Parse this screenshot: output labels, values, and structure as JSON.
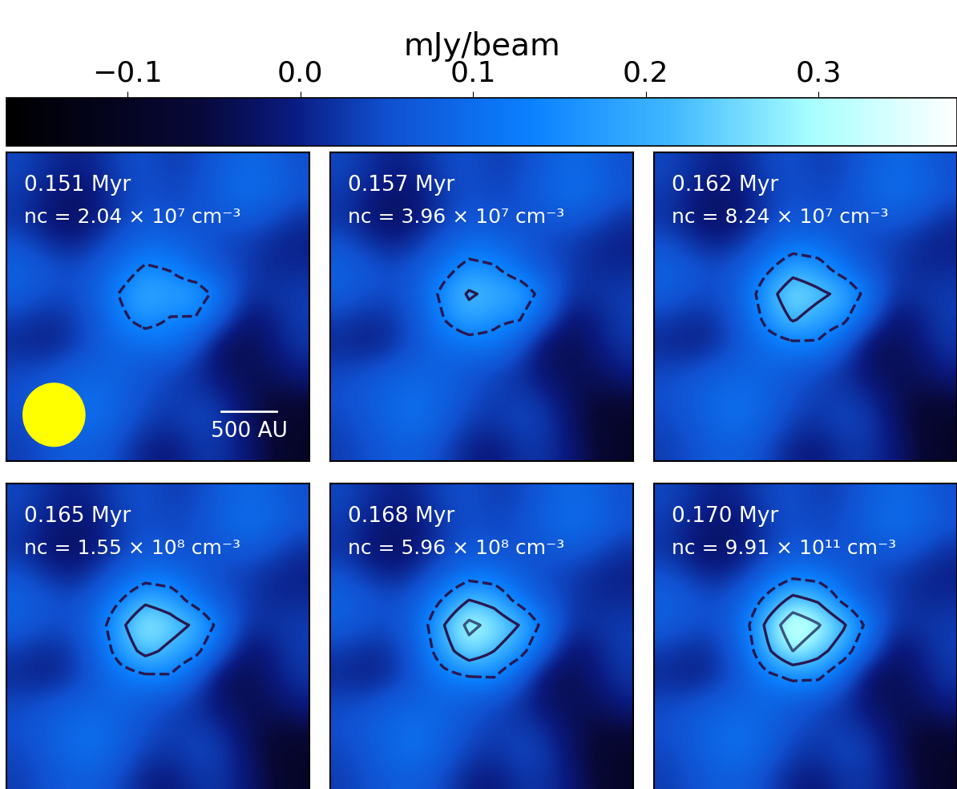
{
  "chart_data": {
    "type": "heatmap",
    "xlim": [
      -1370,
      1370
    ],
    "ylim": [
      -1370,
      1370
    ],
    "tick_labels": false,
    "colorbar": {
      "label": "mJy/beam",
      "range": [
        -0.17,
        0.38
      ],
      "ticks": [
        {
          "value": -0.1,
          "label": "−0.1"
        },
        0.0,
        0.1,
        0.2,
        0.3
      ]
    },
    "contour_levels": [
      0.14,
      0.22,
      0.3
    ],
    "panels": [
      {
        "time": "0.151 Myr",
        "density": "nc = 2.04 × 10⁷ cm⁻³",
        "scale_bar": {
          "length": 500,
          "label": "500 AU"
        },
        "beam_diameter": 560,
        "cells": [
          [
            0.04,
            0.02,
            0.0,
            0.01,
            0.04,
            0.05,
            0.03,
            0.04,
            0.07,
            0.09,
            0.08,
            0.05
          ],
          [
            0.03,
            0.0,
            -0.02,
            -0.01,
            0.03,
            0.05,
            0.04,
            0.05,
            0.08,
            0.1,
            0.09,
            0.06
          ],
          [
            0.02,
            -0.01,
            -0.03,
            -0.01,
            0.03,
            0.06,
            0.05,
            0.05,
            0.06,
            0.07,
            0.05,
            0.02
          ],
          [
            0.05,
            0.02,
            0.0,
            0.024,
            0.063,
            0.09,
            0.086,
            0.066,
            0.041,
            0.03,
            0.01,
            0.0
          ],
          [
            0.08,
            0.06,
            0.043,
            0.063,
            0.103,
            0.149,
            0.135,
            0.093,
            0.055,
            0.03,
            0.01,
            0.01
          ],
          [
            0.07,
            0.05,
            0.044,
            0.073,
            0.144,
            0.2,
            0.178,
            0.179,
            0.108,
            0.02,
            0.02,
            0.03
          ],
          [
            0.03,
            0.01,
            0.023,
            0.06,
            0.124,
            0.164,
            0.135,
            0.134,
            0.058,
            -0.02,
            0.0,
            0.03
          ],
          [
            0.01,
            0.0,
            0.02,
            0.059,
            0.088,
            0.095,
            0.106,
            0.055,
            -0.028,
            -0.04,
            -0.01,
            0.02
          ],
          [
            0.04,
            0.05,
            0.07,
            0.08,
            0.076,
            0.06,
            0.038,
            0.014,
            -0.02,
            -0.04,
            -0.03,
            0.0
          ],
          [
            0.05,
            0.07,
            0.09,
            0.1,
            0.08,
            0.05,
            0.03,
            0.03,
            0.01,
            -0.03,
            -0.06,
            -0.05
          ],
          [
            0.04,
            0.06,
            0.09,
            0.1,
            0.07,
            0.03,
            0.02,
            0.04,
            0.03,
            -0.02,
            -0.07,
            -0.09
          ],
          [
            0.03,
            0.05,
            0.07,
            0.07,
            0.04,
            0.0,
            -0.01,
            0.02,
            0.02,
            -0.01,
            -0.06,
            -0.09
          ]
        ]
      },
      {
        "time": "0.157 Myr",
        "density": "nc = 3.96 × 10⁷ cm⁻³",
        "cells": [
          [
            0.04,
            0.02,
            0.0,
            0.01,
            0.04,
            0.05,
            0.03,
            0.04,
            0.07,
            0.09,
            0.08,
            0.05
          ],
          [
            0.03,
            0.0,
            -0.02,
            -0.01,
            0.03,
            0.05,
            0.04,
            0.05,
            0.08,
            0.1,
            0.09,
            0.06
          ],
          [
            0.02,
            -0.01,
            -0.03,
            -0.01,
            0.03,
            0.06,
            0.05,
            0.05,
            0.06,
            0.07,
            0.05,
            0.02
          ],
          [
            0.05,
            0.02,
            0.0,
            0.025,
            0.066,
            0.095,
            0.09,
            0.068,
            0.042,
            0.03,
            0.01,
            0.0
          ],
          [
            0.08,
            0.06,
            0.043,
            0.066,
            0.113,
            0.165,
            0.148,
            0.098,
            0.056,
            0.03,
            0.01,
            0.01
          ],
          [
            0.07,
            0.05,
            0.045,
            0.078,
            0.161,
            0.229,
            0.201,
            0.188,
            0.109,
            0.02,
            0.02,
            0.03
          ],
          [
            0.03,
            0.01,
            0.023,
            0.065,
            0.139,
            0.189,
            0.155,
            0.142,
            0.059,
            -0.02,
            0.0,
            0.03
          ],
          [
            0.01,
            0.0,
            0.02,
            0.061,
            0.094,
            0.106,
            0.115,
            0.059,
            -0.027,
            -0.04,
            -0.01,
            0.02
          ],
          [
            0.04,
            0.05,
            0.07,
            0.08,
            0.078,
            0.062,
            0.039,
            0.015,
            -0.02,
            -0.04,
            -0.03,
            0.0
          ],
          [
            0.05,
            0.07,
            0.09,
            0.1,
            0.08,
            0.05,
            0.03,
            0.03,
            0.01,
            -0.03,
            -0.06,
            -0.05
          ],
          [
            0.04,
            0.06,
            0.09,
            0.1,
            0.07,
            0.03,
            0.02,
            0.04,
            0.03,
            -0.02,
            -0.07,
            -0.09
          ],
          [
            0.03,
            0.05,
            0.07,
            0.07,
            0.04,
            0.0,
            -0.01,
            0.02,
            0.02,
            -0.01,
            -0.06,
            -0.09
          ]
        ]
      },
      {
        "time": "0.162 Myr",
        "density": "nc = 8.24 × 10⁷ cm⁻³",
        "cells": [
          [
            0.04,
            0.02,
            0.0,
            0.01,
            0.04,
            0.05,
            0.03,
            0.04,
            0.07,
            0.09,
            0.08,
            0.05
          ],
          [
            0.03,
            0.0,
            -0.02,
            -0.01,
            0.03,
            0.05,
            0.04,
            0.05,
            0.08,
            0.1,
            0.09,
            0.06
          ],
          [
            0.02,
            -0.01,
            -0.03,
            -0.01,
            0.03,
            0.06,
            0.05,
            0.05,
            0.06,
            0.07,
            0.05,
            0.02
          ],
          [
            0.05,
            0.02,
            0.0,
            0.026,
            0.07,
            0.102,
            0.096,
            0.07,
            0.042,
            0.03,
            0.01,
            0.0
          ],
          [
            0.08,
            0.06,
            0.044,
            0.07,
            0.128,
            0.19,
            0.168,
            0.106,
            0.058,
            0.03,
            0.01,
            0.01
          ],
          [
            0.07,
            0.05,
            0.046,
            0.086,
            0.188,
            0.272,
            0.236,
            0.202,
            0.112,
            0.02,
            0.02,
            0.03
          ],
          [
            0.03,
            0.01,
            0.024,
            0.072,
            0.162,
            0.226,
            0.186,
            0.154,
            0.062,
            -0.02,
            0.0,
            0.03
          ],
          [
            0.01,
            0.0,
            0.02,
            0.064,
            0.104,
            0.122,
            0.128,
            0.064,
            -0.026,
            -0.04,
            -0.01,
            0.02
          ],
          [
            0.04,
            0.05,
            0.07,
            0.08,
            0.08,
            0.066,
            0.042,
            0.016,
            -0.02,
            -0.04,
            -0.03,
            0.0
          ],
          [
            0.05,
            0.07,
            0.09,
            0.1,
            0.08,
            0.05,
            0.03,
            0.03,
            0.01,
            -0.03,
            -0.06,
            -0.05
          ],
          [
            0.04,
            0.06,
            0.09,
            0.1,
            0.07,
            0.03,
            0.02,
            0.04,
            0.03,
            -0.02,
            -0.07,
            -0.09
          ],
          [
            0.03,
            0.05,
            0.07,
            0.07,
            0.04,
            0.0,
            -0.01,
            0.02,
            0.02,
            -0.01,
            -0.06,
            -0.09
          ]
        ]
      },
      {
        "time": "0.165 Myr",
        "density": "nc = 1.55 × 10⁸ cm⁻³",
        "cells": [
          [
            0.04,
            0.02,
            0.0,
            0.01,
            0.04,
            0.05,
            0.03,
            0.04,
            0.07,
            0.09,
            0.08,
            0.05
          ],
          [
            0.03,
            0.0,
            -0.02,
            -0.01,
            0.03,
            0.05,
            0.04,
            0.05,
            0.08,
            0.1,
            0.09,
            0.06
          ],
          [
            0.02,
            -0.01,
            -0.03,
            -0.01,
            0.03,
            0.06,
            0.05,
            0.05,
            0.06,
            0.07,
            0.05,
            0.02
          ],
          [
            0.05,
            0.02,
            0.0,
            0.027,
            0.072,
            0.105,
            0.099,
            0.071,
            0.042,
            0.03,
            0.01,
            0.0
          ],
          [
            0.08,
            0.06,
            0.044,
            0.072,
            0.135,
            0.201,
            0.177,
            0.11,
            0.059,
            0.03,
            0.01,
            0.01
          ],
          [
            0.07,
            0.05,
            0.047,
            0.09,
            0.2,
            0.291,
            0.252,
            0.208,
            0.113,
            0.02,
            0.02,
            0.03
          ],
          [
            0.03,
            0.01,
            0.024,
            0.075,
            0.172,
            0.243,
            0.2,
            0.159,
            0.063,
            -0.02,
            0.0,
            0.03
          ],
          [
            0.01,
            0.0,
            0.02,
            0.065,
            0.108,
            0.129,
            0.134,
            0.066,
            -0.026,
            -0.04,
            -0.01,
            0.02
          ],
          [
            0.04,
            0.05,
            0.07,
            0.08,
            0.081,
            0.068,
            0.043,
            0.017,
            -0.02,
            -0.04,
            -0.03,
            0.0
          ],
          [
            0.05,
            0.07,
            0.09,
            0.1,
            0.08,
            0.05,
            0.03,
            0.03,
            0.01,
            -0.03,
            -0.06,
            -0.05
          ],
          [
            0.04,
            0.06,
            0.09,
            0.1,
            0.07,
            0.03,
            0.02,
            0.04,
            0.03,
            -0.02,
            -0.07,
            -0.09
          ],
          [
            0.03,
            0.05,
            0.07,
            0.07,
            0.04,
            0.0,
            -0.01,
            0.02,
            0.02,
            -0.01,
            -0.06,
            -0.09
          ]
        ]
      },
      {
        "time": "0.168 Myr",
        "density": "nc = 5.96 × 10⁸ cm⁻³",
        "cells": [
          [
            0.04,
            0.02,
            0.0,
            0.01,
            0.04,
            0.05,
            0.03,
            0.04,
            0.07,
            0.09,
            0.08,
            0.05
          ],
          [
            0.03,
            0.0,
            -0.02,
            -0.01,
            0.03,
            0.05,
            0.04,
            0.05,
            0.08,
            0.1,
            0.09,
            0.06
          ],
          [
            0.02,
            -0.01,
            -0.03,
            -0.01,
            0.03,
            0.06,
            0.05,
            0.05,
            0.06,
            0.07,
            0.05,
            0.02
          ],
          [
            0.05,
            0.02,
            0.0,
            0.028,
            0.075,
            0.11,
            0.103,
            0.073,
            0.043,
            0.03,
            0.01,
            0.0
          ],
          [
            0.08,
            0.06,
            0.045,
            0.075,
            0.145,
            0.218,
            0.19,
            0.115,
            0.06,
            0.03,
            0.01,
            0.01
          ],
          [
            0.07,
            0.05,
            0.048,
            0.095,
            0.218,
            0.32,
            0.275,
            0.218,
            0.115,
            0.02,
            0.02,
            0.03
          ],
          [
            0.03,
            0.01,
            0.025,
            0.08,
            0.188,
            0.268,
            0.22,
            0.168,
            0.065,
            -0.02,
            0.0,
            0.03
          ],
          [
            0.01,
            0.0,
            0.02,
            0.068,
            0.115,
            0.14,
            0.143,
            0.07,
            -0.025,
            -0.04,
            -0.01,
            0.02
          ],
          [
            0.04,
            0.05,
            0.07,
            0.08,
            0.083,
            0.07,
            0.045,
            0.018,
            -0.02,
            -0.04,
            -0.03,
            0.0
          ],
          [
            0.05,
            0.07,
            0.09,
            0.1,
            0.08,
            0.05,
            0.03,
            0.03,
            0.01,
            -0.03,
            -0.06,
            -0.05
          ],
          [
            0.04,
            0.06,
            0.09,
            0.1,
            0.07,
            0.03,
            0.02,
            0.04,
            0.03,
            -0.02,
            -0.07,
            -0.09
          ],
          [
            0.03,
            0.05,
            0.07,
            0.07,
            0.04,
            0.0,
            -0.01,
            0.02,
            0.02,
            -0.01,
            -0.06,
            -0.09
          ]
        ]
      },
      {
        "time": "0.170 Myr",
        "density": "nc = 9.91 × 10¹¹ cm⁻³",
        "cells": [
          [
            0.04,
            0.02,
            0.0,
            0.01,
            0.04,
            0.05,
            0.03,
            0.04,
            0.07,
            0.09,
            0.08,
            0.05
          ],
          [
            0.03,
            0.0,
            -0.02,
            -0.01,
            0.03,
            0.05,
            0.04,
            0.05,
            0.08,
            0.1,
            0.09,
            0.06
          ],
          [
            0.02,
            -0.01,
            -0.03,
            -0.01,
            0.03,
            0.06,
            0.05,
            0.05,
            0.06,
            0.07,
            0.05,
            0.02
          ],
          [
            0.05,
            0.02,
            0.0,
            0.029,
            0.079,
            0.116,
            0.108,
            0.075,
            0.043,
            0.03,
            0.01,
            0.0
          ],
          [
            0.08,
            0.06,
            0.046,
            0.079,
            0.159,
            0.24,
            0.208,
            0.122,
            0.062,
            0.03,
            0.01,
            0.01
          ],
          [
            0.07,
            0.05,
            0.049,
            0.102,
            0.241,
            0.358,
            0.306,
            0.23,
            0.117,
            0.02,
            0.02,
            0.03
          ],
          [
            0.03,
            0.01,
            0.026,
            0.086,
            0.208,
            0.301,
            0.247,
            0.178,
            0.067,
            -0.02,
            0.0,
            0.03
          ],
          [
            0.01,
            0.0,
            0.02,
            0.07,
            0.124,
            0.154,
            0.154,
            0.075,
            -0.024,
            -0.04,
            -0.01,
            0.02
          ],
          [
            0.04,
            0.05,
            0.07,
            0.08,
            0.085,
            0.073,
            0.047,
            0.019,
            -0.02,
            -0.04,
            -0.03,
            0.0
          ],
          [
            0.05,
            0.07,
            0.09,
            0.1,
            0.08,
            0.05,
            0.03,
            0.03,
            0.01,
            -0.03,
            -0.06,
            -0.05
          ],
          [
            0.04,
            0.06,
            0.09,
            0.1,
            0.07,
            0.03,
            0.02,
            0.04,
            0.03,
            -0.02,
            -0.07,
            -0.09
          ],
          [
            0.03,
            0.05,
            0.07,
            0.07,
            0.04,
            0.0,
            -0.01,
            0.02,
            0.02,
            -0.01,
            -0.06,
            -0.09
          ]
        ]
      }
    ]
  }
}
